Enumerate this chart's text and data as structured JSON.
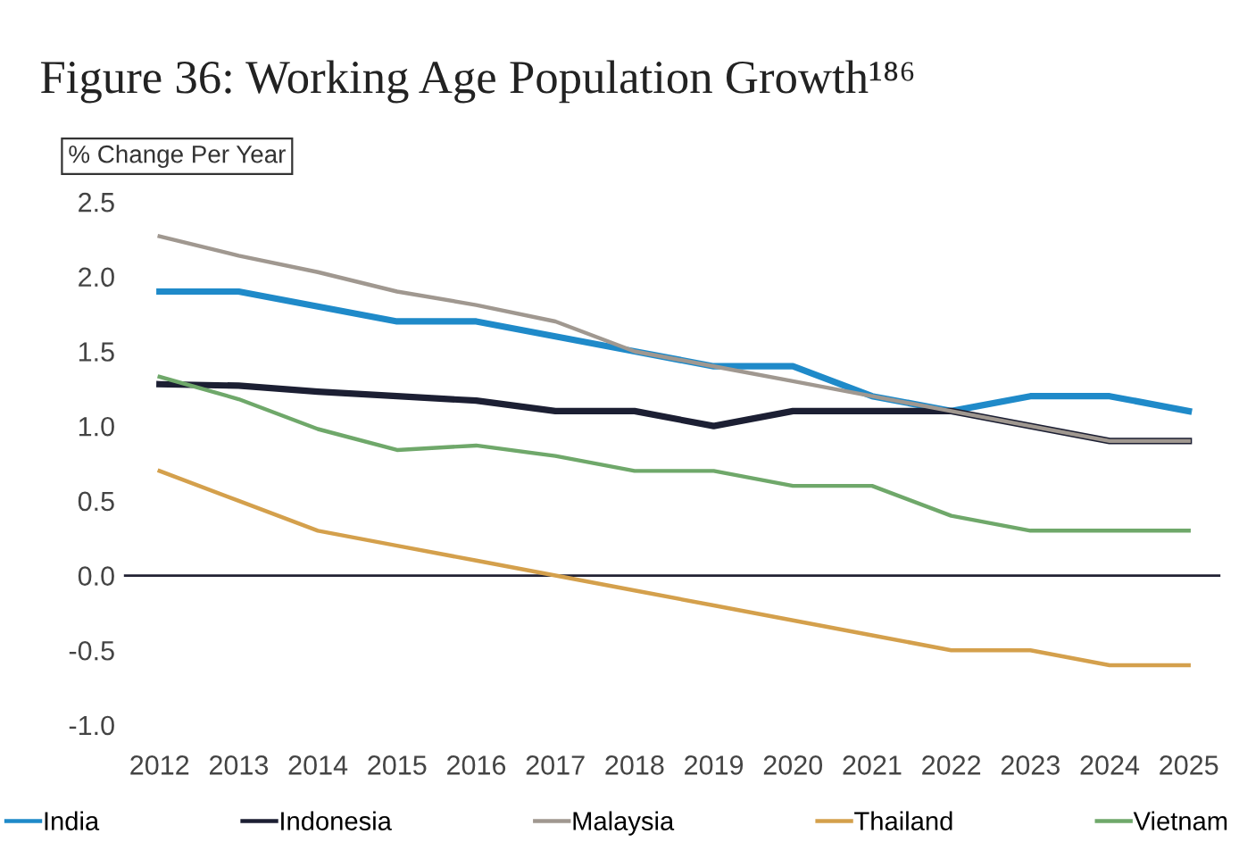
{
  "chart_data": {
    "type": "line",
    "title": "Figure 36: Working Age Population Growth¹⁸⁶",
    "ylabel": "% Change Per Year",
    "categories": [
      "2012",
      "2013",
      "2014",
      "2015",
      "2016",
      "2017",
      "2018",
      "2019",
      "2020",
      "2021",
      "2022",
      "2023",
      "2024",
      "2025"
    ],
    "series": [
      {
        "name": "India",
        "color": "#1f8ac9",
        "values": [
          1.9,
          1.9,
          1.8,
          1.7,
          1.7,
          1.6,
          1.5,
          1.4,
          1.4,
          1.2,
          1.1,
          1.2,
          1.2,
          1.1
        ]
      },
      {
        "name": "Indonesia",
        "color": "#1c1f33",
        "values": [
          1.28,
          1.27,
          1.23,
          1.2,
          1.17,
          1.1,
          1.1,
          1.0,
          1.1,
          1.1,
          1.1,
          1.0,
          0.9,
          0.9
        ]
      },
      {
        "name": "Malaysia",
        "color": "#a09890",
        "values": [
          2.27,
          2.14,
          2.03,
          1.9,
          1.81,
          1.7,
          1.5,
          1.4,
          1.3,
          1.2,
          1.1,
          1.0,
          0.9,
          0.9
        ]
      },
      {
        "name": "Thailand",
        "color": "#d4a04c",
        "values": [
          0.7,
          0.5,
          0.3,
          0.2,
          0.1,
          0.0,
          -0.1,
          -0.2,
          -0.3,
          -0.4,
          -0.5,
          -0.5,
          -0.6,
          -0.6
        ]
      },
      {
        "name": "Vietnam",
        "color": "#6fa86a",
        "values": [
          1.33,
          1.18,
          0.98,
          0.84,
          0.87,
          0.8,
          0.7,
          0.7,
          0.6,
          0.6,
          0.4,
          0.3,
          0.3,
          0.3
        ]
      }
    ],
    "ylim": [
      -1.0,
      2.5
    ],
    "yticks": [
      {
        "value": -1.0,
        "label": "-1.0"
      },
      {
        "value": -0.5,
        "label": "-0.5"
      },
      {
        "value": 0.0,
        "label": "0.0"
      },
      {
        "value": 0.5,
        "label": "0.5"
      },
      {
        "value": 1.0,
        "label": "1.0"
      },
      {
        "value": 1.5,
        "label": "1.5"
      },
      {
        "value": 2.0,
        "label": "2.0"
      },
      {
        "value": 2.5,
        "label": "2.5"
      }
    ],
    "ref_lines": [
      {
        "axis": "y",
        "value": 0,
        "color": "#222233"
      }
    ],
    "grid": false,
    "legend": "bottom",
    "marker": "none",
    "line_style": "solid"
  }
}
